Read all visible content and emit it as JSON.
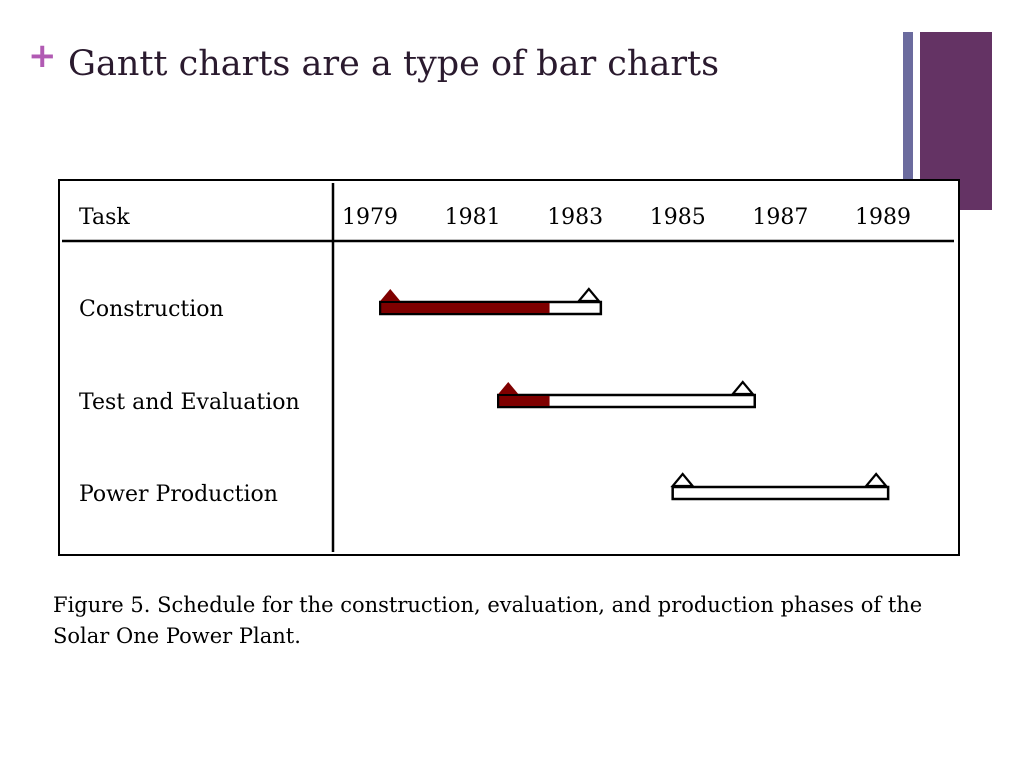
{
  "slide": {
    "bullet": "+",
    "title": "Gantt charts are a type of bar charts",
    "caption": "Figure 5. Schedule for the construction, evaluation, and production phases of the Solar One Power Plant."
  },
  "colors": {
    "bullet": "#b15ab3",
    "accent_thin": "#6b6b9e",
    "accent_thick": "#643364",
    "progress": "#7f0000",
    "start_marker": "#7f0000",
    "frame": "#000000"
  },
  "chart_data": {
    "type": "gantt",
    "task_header": "Task",
    "year_ticks": [
      "1979",
      "1981",
      "1983",
      "1985",
      "1987",
      "1989"
    ],
    "xlim": [
      1979,
      1990
    ],
    "tasks": [
      {
        "name": "Construction",
        "start": 1979.2,
        "end": 1983.5,
        "completed_to": 1982.5,
        "start_marker": "filled",
        "end_marker": "open"
      },
      {
        "name": "Test and Evaluation",
        "start": 1981.5,
        "end": 1986.5,
        "completed_to": 1982.5,
        "start_marker": "filled",
        "end_marker": "open"
      },
      {
        "name": "Power Production",
        "start": 1984.9,
        "end": 1989.1,
        "completed_to": null,
        "start_marker": "open",
        "end_marker": "open"
      }
    ]
  }
}
